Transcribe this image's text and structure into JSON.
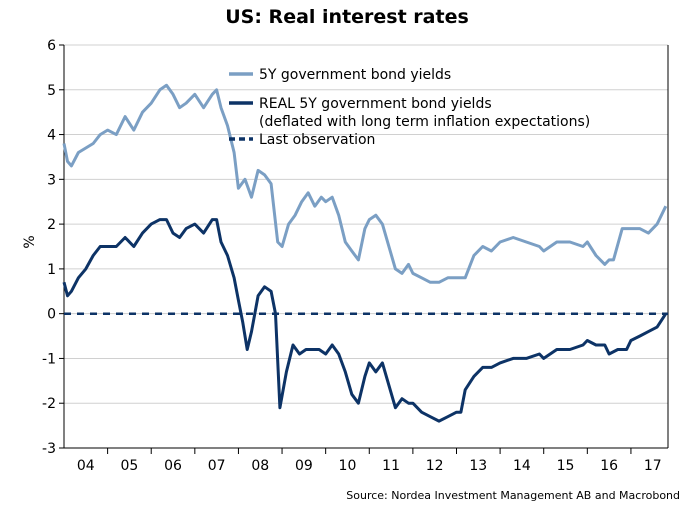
{
  "chart_data": {
    "type": "line",
    "title": "US: Real interest rates",
    "ylabel": "%",
    "xlabel": "",
    "ylim": [
      -3,
      6
    ],
    "yticks": [
      6,
      5,
      4,
      3,
      2,
      1,
      0,
      -1,
      -2,
      -3
    ],
    "xlim": [
      2004.0,
      2017.85
    ],
    "xtick_labels": [
      "04",
      "05",
      "06",
      "07",
      "08",
      "09",
      "10",
      "11",
      "12",
      "13",
      "14",
      "15",
      "16",
      "17"
    ],
    "grid": "horizontal",
    "legend_position": "top-center",
    "colors": {
      "nominal": "#7b9fc4",
      "real": "#0d3366",
      "last": "#0d3366",
      "grid": "#d0d0d0"
    },
    "series": [
      {
        "name": "5Y government bond yields",
        "style": "solid",
        "x": [
          2004.0,
          2004.08,
          2004.17,
          2004.33,
          2004.5,
          2004.67,
          2004.83,
          2005.0,
          2005.2,
          2005.4,
          2005.6,
          2005.8,
          2006.0,
          2006.2,
          2006.35,
          2006.5,
          2006.65,
          2006.8,
          2007.0,
          2007.2,
          2007.4,
          2007.5,
          2007.6,
          2007.75,
          2007.9,
          2008.0,
          2008.15,
          2008.3,
          2008.45,
          2008.6,
          2008.75,
          2008.9,
          2009.0,
          2009.15,
          2009.3,
          2009.45,
          2009.6,
          2009.75,
          2009.9,
          2010.0,
          2010.15,
          2010.3,
          2010.45,
          2010.6,
          2010.75,
          2010.9,
          2011.0,
          2011.15,
          2011.3,
          2011.45,
          2011.6,
          2011.75,
          2011.9,
          2012.0,
          2012.2,
          2012.4,
          2012.6,
          2012.8,
          2013.0,
          2013.2,
          2013.4,
          2013.6,
          2013.8,
          2014.0,
          2014.3,
          2014.6,
          2014.9,
          2015.0,
          2015.3,
          2015.6,
          2015.9,
          2016.0,
          2016.2,
          2016.4,
          2016.5,
          2016.6,
          2016.8,
          2017.0,
          2017.2,
          2017.4,
          2017.6,
          2017.8
        ],
        "values": [
          3.8,
          3.4,
          3.3,
          3.6,
          3.7,
          3.8,
          4.0,
          4.1,
          4.0,
          4.4,
          4.1,
          4.5,
          4.7,
          5.0,
          5.1,
          4.9,
          4.6,
          4.7,
          4.9,
          4.6,
          4.9,
          5.0,
          4.6,
          4.2,
          3.6,
          2.8,
          3.0,
          2.6,
          3.2,
          3.1,
          2.9,
          1.6,
          1.5,
          2.0,
          2.2,
          2.5,
          2.7,
          2.4,
          2.6,
          2.5,
          2.6,
          2.2,
          1.6,
          1.4,
          1.2,
          1.9,
          2.1,
          2.2,
          2.0,
          1.5,
          1.0,
          0.9,
          1.1,
          0.9,
          0.8,
          0.7,
          0.7,
          0.8,
          0.8,
          0.8,
          1.3,
          1.5,
          1.4,
          1.6,
          1.7,
          1.6,
          1.5,
          1.4,
          1.6,
          1.6,
          1.5,
          1.6,
          1.3,
          1.1,
          1.2,
          1.2,
          1.9,
          1.9,
          1.9,
          1.8,
          2.0,
          2.4
        ]
      },
      {
        "name": "REAL 5Y government bond yields\n(deflated with long term inflation expectations)",
        "style": "solid",
        "x": [
          2004.0,
          2004.08,
          2004.17,
          2004.33,
          2004.5,
          2004.67,
          2004.83,
          2005.0,
          2005.2,
          2005.4,
          2005.6,
          2005.8,
          2006.0,
          2006.2,
          2006.35,
          2006.5,
          2006.65,
          2006.8,
          2007.0,
          2007.2,
          2007.4,
          2007.5,
          2007.6,
          2007.75,
          2007.9,
          2008.0,
          2008.1,
          2008.2,
          2008.3,
          2008.45,
          2008.6,
          2008.75,
          2008.85,
          2008.95,
          2009.1,
          2009.25,
          2009.4,
          2009.55,
          2009.7,
          2009.85,
          2010.0,
          2010.15,
          2010.3,
          2010.45,
          2010.6,
          2010.75,
          2010.9,
          2011.0,
          2011.15,
          2011.3,
          2011.45,
          2011.6,
          2011.75,
          2011.9,
          2012.0,
          2012.2,
          2012.4,
          2012.6,
          2012.8,
          2013.0,
          2013.1,
          2013.2,
          2013.4,
          2013.6,
          2013.8,
          2014.0,
          2014.3,
          2014.6,
          2014.9,
          2015.0,
          2015.3,
          2015.6,
          2015.9,
          2016.0,
          2016.2,
          2016.4,
          2016.5,
          2016.7,
          2016.9,
          2017.0,
          2017.2,
          2017.4,
          2017.6,
          2017.8
        ],
        "values": [
          0.7,
          0.4,
          0.5,
          0.8,
          1.0,
          1.3,
          1.5,
          1.5,
          1.5,
          1.7,
          1.5,
          1.8,
          2.0,
          2.1,
          2.1,
          1.8,
          1.7,
          1.9,
          2.0,
          1.8,
          2.1,
          2.1,
          1.6,
          1.3,
          0.8,
          0.3,
          -0.2,
          -0.8,
          -0.4,
          0.4,
          0.6,
          0.5,
          0.0,
          -2.1,
          -1.3,
          -0.7,
          -0.9,
          -0.8,
          -0.8,
          -0.8,
          -0.9,
          -0.7,
          -0.9,
          -1.3,
          -1.8,
          -2.0,
          -1.4,
          -1.1,
          -1.3,
          -1.1,
          -1.6,
          -2.1,
          -1.9,
          -2.0,
          -2.0,
          -2.2,
          -2.3,
          -2.4,
          -2.3,
          -2.2,
          -2.2,
          -1.7,
          -1.4,
          -1.2,
          -1.2,
          -1.1,
          -1.0,
          -1.0,
          -0.9,
          -1.0,
          -0.8,
          -0.8,
          -0.7,
          -0.6,
          -0.7,
          -0.7,
          -0.9,
          -0.8,
          -0.8,
          -0.6,
          -0.5,
          -0.4,
          -0.3,
          0.0
        ]
      },
      {
        "name": "Last observation",
        "style": "dashed",
        "x": [
          2004.0,
          2017.85
        ],
        "values": [
          0.0,
          0.0
        ]
      }
    ],
    "source": "Source: Nordea Investment Management AB and Macrobond"
  }
}
